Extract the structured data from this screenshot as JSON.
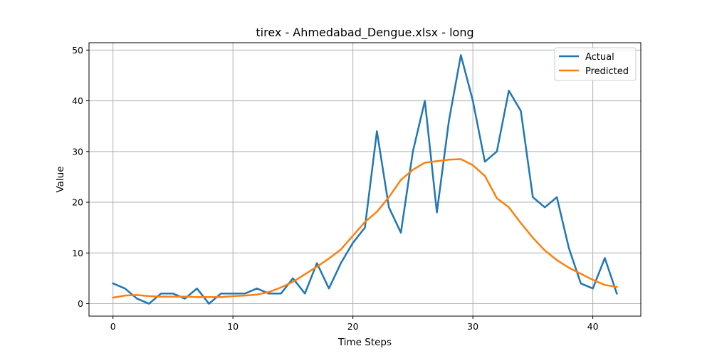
{
  "chart_data": {
    "type": "line",
    "title": "tirex - Ahmedabad_Dengue.xlsx - long",
    "xlabel": "Time Steps",
    "ylabel": "Value",
    "xlim": [
      -2,
      44
    ],
    "ylim": [
      -2.45,
      51.45
    ],
    "xticks": [
      0,
      10,
      20,
      30,
      40
    ],
    "yticks": [
      0,
      10,
      20,
      30,
      40,
      50
    ],
    "grid": true,
    "legend_position": "top-right",
    "x": [
      0,
      1,
      2,
      3,
      4,
      5,
      6,
      7,
      8,
      9,
      10,
      11,
      12,
      13,
      14,
      15,
      16,
      17,
      18,
      19,
      20,
      21,
      22,
      23,
      24,
      25,
      26,
      27,
      28,
      29,
      30,
      31,
      32,
      33,
      34,
      35,
      36,
      37,
      38,
      39,
      40,
      41,
      42
    ],
    "series": [
      {
        "name": "Actual",
        "color": "#1f77b4",
        "values": [
          4,
          3,
          1,
          0,
          2,
          2,
          1,
          3,
          0,
          2,
          2,
          2,
          3,
          2,
          2,
          5,
          2,
          8,
          3,
          8,
          12,
          15,
          34,
          19,
          14,
          30,
          40,
          18,
          36,
          49,
          40,
          28,
          30,
          42,
          38,
          21,
          19,
          21,
          11,
          4,
          3,
          9,
          2
        ]
      },
      {
        "name": "Predicted",
        "color": "#ff7f0e",
        "values": [
          1.2,
          1.6,
          1.7,
          1.5,
          1.4,
          1.4,
          1.4,
          1.3,
          1.3,
          1.3,
          1.5,
          1.6,
          1.8,
          2.3,
          3.2,
          4.3,
          5.8,
          7.3,
          8.9,
          10.7,
          13.4,
          16.1,
          18.1,
          21.0,
          24.4,
          26.4,
          27.8,
          28.1,
          28.4,
          28.5,
          27.3,
          25.2,
          20.8,
          19.0,
          15.9,
          13.0,
          10.5,
          8.6,
          7.1,
          5.9,
          4.7,
          3.7,
          3.3
        ]
      }
    ]
  }
}
